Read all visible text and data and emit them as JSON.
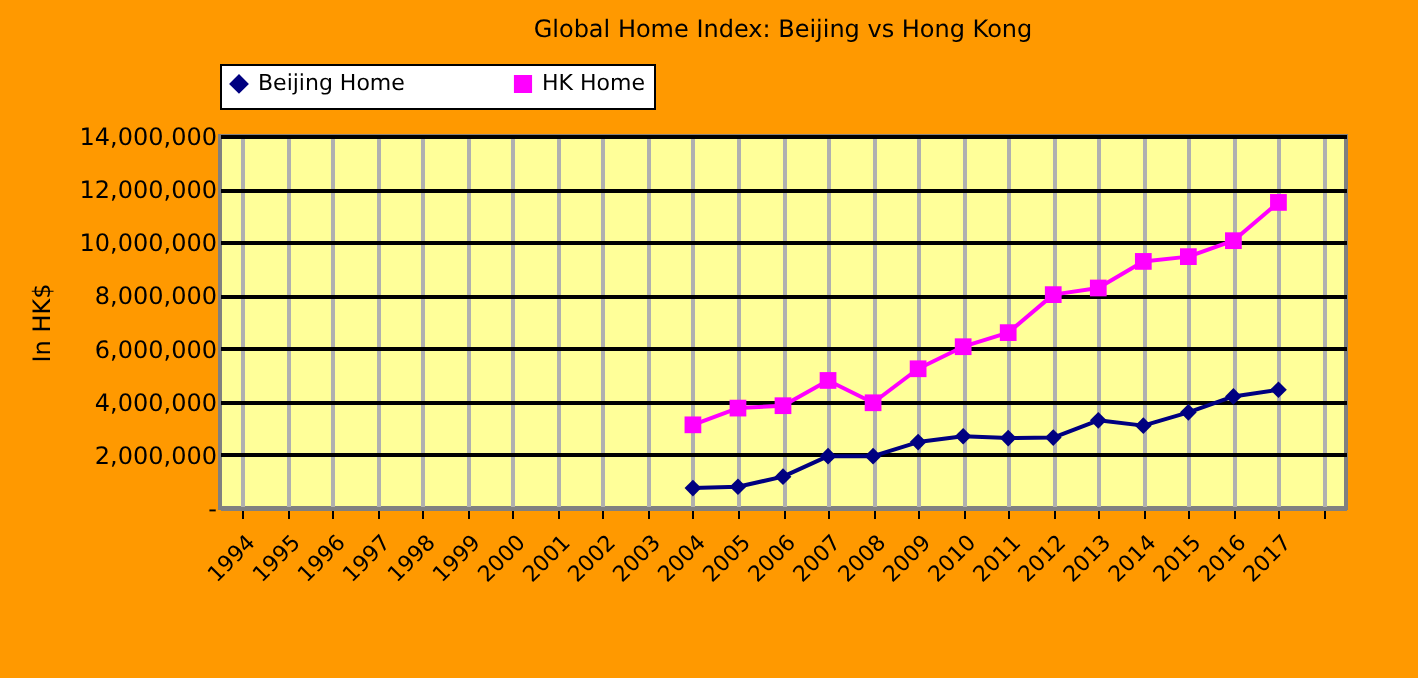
{
  "chart_data": {
    "type": "line",
    "title": "Global Home Index: Beijing vs Hong Kong",
    "ylabel": "In HK$",
    "categories": [
      "1994",
      "1995",
      "1996",
      "1997",
      "1998",
      "1999",
      "2000",
      "2001",
      "2002",
      "2003",
      "2004",
      "2005",
      "2006",
      "2007",
      "2008",
      "2009",
      "2010",
      "2011",
      "2012",
      "2013",
      "2014",
      "2015",
      "2016",
      "2017",
      null
    ],
    "series": [
      {
        "name": "Beijing Home",
        "color": "#000080",
        "marker": "diamond",
        "values": [
          null,
          null,
          null,
          null,
          null,
          null,
          null,
          null,
          null,
          null,
          750000,
          800000,
          1180000,
          1950000,
          1950000,
          2480000,
          2700000,
          2630000,
          2650000,
          3300000,
          3100000,
          3600000,
          4200000,
          4450000,
          null
        ]
      },
      {
        "name": "HK Home",
        "color": "#ff00ff",
        "marker": "square",
        "values": [
          null,
          null,
          null,
          null,
          null,
          null,
          null,
          null,
          null,
          null,
          3130000,
          3760000,
          3850000,
          4800000,
          3960000,
          5240000,
          6070000,
          6600000,
          8030000,
          8280000,
          9280000,
          9460000,
          10060000,
          11500000,
          null
        ]
      }
    ],
    "ylim": [
      0,
      14000000
    ],
    "yticks": [
      {
        "value": 0,
        "label": "-"
      },
      {
        "value": 2000000,
        "label": "2,000,000"
      },
      {
        "value": 4000000,
        "label": "4,000,000"
      },
      {
        "value": 6000000,
        "label": "6,000,000"
      },
      {
        "value": 8000000,
        "label": "8,000,000"
      },
      {
        "value": 10000000,
        "label": "10,000,000"
      },
      {
        "value": 12000000,
        "label": "12,000,000"
      },
      {
        "value": 14000000,
        "label": "14,000,000"
      }
    ],
    "grid": true,
    "legend": "top",
    "line_style": "solid"
  }
}
